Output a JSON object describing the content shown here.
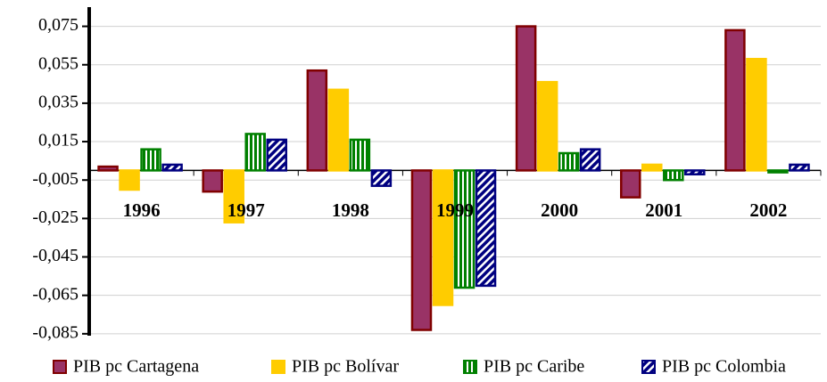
{
  "chart_data": {
    "type": "bar",
    "categories": [
      "1996",
      "1997",
      "1998",
      "1999",
      "2000",
      "2001",
      "2002"
    ],
    "series": [
      {
        "name": "PIB pc Cartagena",
        "color": "#993366",
        "values": [
          0.002,
          -0.011,
          0.052,
          -0.083,
          0.075,
          -0.014,
          0.073
        ]
      },
      {
        "name": "PIB pc Bolívar",
        "color": "#ffcc00",
        "values": [
          -0.01,
          -0.027,
          0.042,
          -0.07,
          0.046,
          0.003,
          0.058
        ]
      },
      {
        "name": "PIB pc Caribe",
        "color": "#008000",
        "values": [
          0.011,
          0.019,
          0.016,
          -0.061,
          0.009,
          -0.005,
          -0.001
        ]
      },
      {
        "name": "PIB pc Colombia",
        "color": "#000080",
        "values": [
          0.003,
          0.016,
          -0.008,
          -0.06,
          0.011,
          -0.002,
          0.003
        ]
      }
    ],
    "ylim": [
      -0.086,
      0.085
    ],
    "yticks": [
      {
        "value": 0.075,
        "label": "0,075"
      },
      {
        "value": 0.055,
        "label": "0,055"
      },
      {
        "value": 0.035,
        "label": "0,035"
      },
      {
        "value": 0.015,
        "label": "0,015"
      },
      {
        "value": -0.005,
        "label": "-0,005"
      },
      {
        "value": -0.025,
        "label": "-0,025"
      },
      {
        "value": -0.045,
        "label": "-0,045"
      },
      {
        "value": -0.065,
        "label": "-0,065"
      },
      {
        "value": -0.085,
        "label": "-0,085"
      }
    ],
    "grid": true,
    "legend": "bottom"
  }
}
